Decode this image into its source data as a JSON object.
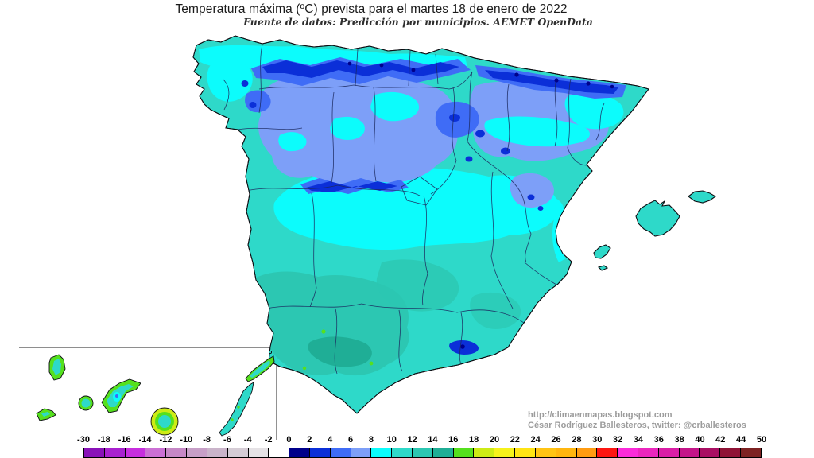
{
  "title": "Temperatura máxima (ºC) prevista para el martes 18 de enero de 2022",
  "subtitle": "Fuente de datos: Predicción por municipios. AEMET OpenData",
  "credits": {
    "url": "http://climaenmapas.blogspot.com",
    "author": "César Rodríguez Ballesteros, twitter: @crballesteros"
  },
  "chart_data": {
    "type": "heatmap",
    "subtype": "choropleth-temperature-map",
    "region": "España (Península, Illes Balears y Canarias en recuadro)",
    "legend": {
      "unit": "ºC",
      "position": "bottom",
      "tick_labels": [
        -30,
        -18,
        -16,
        -14,
        -12,
        -10,
        -8,
        -6,
        -4,
        -2,
        0,
        2,
        4,
        6,
        8,
        10,
        12,
        14,
        16,
        18,
        20,
        22,
        24,
        26,
        28,
        30,
        32,
        34,
        36,
        38,
        40,
        42,
        44,
        50
      ],
      "segment_colors": [
        "#8a12b8",
        "#a921cf",
        "#c72ede",
        "#cb70d4",
        "#c688c6",
        "#c79fc7",
        "#cab4ca",
        "#d5ccd5",
        "#e5e2e5",
        "#ffffff",
        "#00008b",
        "#0b2fd8",
        "#3f6cf6",
        "#7d9ff8",
        "#0cfcfc",
        "#2ed9c9",
        "#2cc7b2",
        "#1fae96",
        "#55e01e",
        "#cdeb15",
        "#f6f21b",
        "#ffe414",
        "#ffc414",
        "#ffb60f",
        "#ff9c12",
        "#fd1612",
        "#fb2bd9",
        "#eb26bd",
        "#da1da6",
        "#c41589",
        "#a90f63",
        "#8f1336",
        "#7d2222"
      ]
    },
    "map_reading": {
      "meseta_norte_y_valle_del_ebro": "4 a 8 ºC",
      "cordillera_cantabrica_pirineos_sierra_nevada": "0 a 4 ºC",
      "franja_central_de_transicion": "8 a 10 ºC",
      "mayor_parte_peninsula_y_baleares": "10 a 12 ºC",
      "suroeste_y_valle_del_guadalquivir": "12 a 16 ºC",
      "puntos_costa_sur_y_canarias": "16 a 20 ºC"
    }
  },
  "map_colors": {
    "coast_outline": "#0d0d12",
    "province_border": "#1c2a60",
    "inset_frame": "#4a4a4a",
    "background": "#ffffff"
  }
}
